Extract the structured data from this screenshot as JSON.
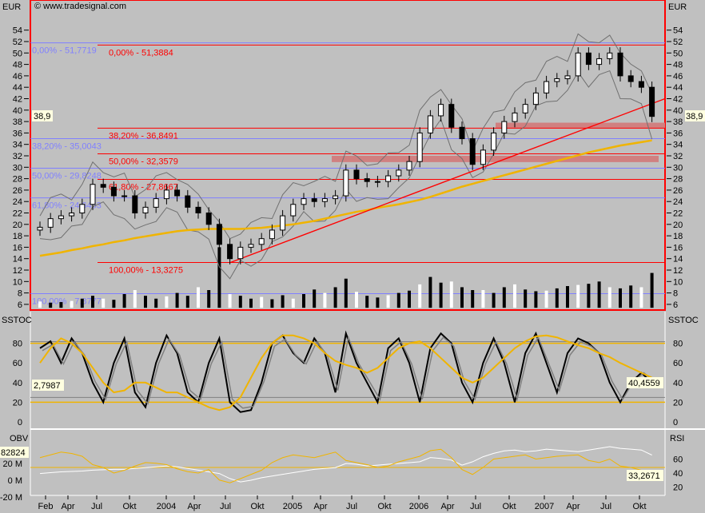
{
  "header": {
    "copyright": "© www.tradesignal.com",
    "left_unit": "EUR",
    "right_unit": "EUR"
  },
  "badges": {
    "price_left": "38,9",
    "price_right": "38,9",
    "sstoc_left": "2,7987",
    "sstoc_right": "40,4559",
    "obv_left": "82824",
    "rsi_right": "33,2671"
  },
  "colors": {
    "price": "#000000",
    "ma": "#f0b400",
    "bollinger": "#707070",
    "fib_blue": "#8080ff",
    "fib_red": "#ff0000",
    "zone": "#d08080",
    "background": "#c0c0c0"
  },
  "chart_data": [
    {
      "type": "candlestick",
      "name_label": "EUR",
      "ylim": [
        5,
        56
      ],
      "yticks": [
        6,
        8,
        10,
        12,
        14,
        16,
        18,
        20,
        22,
        24,
        26,
        28,
        30,
        32,
        34,
        36,
        38,
        40,
        42,
        44,
        46,
        48,
        50,
        52,
        54
      ],
      "x": [
        "2003-01",
        "2003-02",
        "2003-03",
        "2003-04",
        "2003-05",
        "2003-06",
        "2003-07",
        "2003-08",
        "2003-09",
        "2003-10",
        "2003-11",
        "2003-12",
        "2004-01",
        "2004-02",
        "2004-03",
        "2004-04",
        "2004-05",
        "2004-06",
        "2004-07",
        "2004-08",
        "2004-09",
        "2004-10",
        "2004-11",
        "2004-12",
        "2005-01",
        "2005-02",
        "2005-03",
        "2005-04",
        "2005-05",
        "2005-06",
        "2005-07",
        "2005-08",
        "2005-09",
        "2005-10",
        "2005-11",
        "2005-12",
        "2006-01",
        "2006-02",
        "2006-03",
        "2006-04",
        "2006-05",
        "2006-06",
        "2006-07",
        "2006-08",
        "2006-09",
        "2006-10",
        "2006-11",
        "2006-12",
        "2007-01",
        "2007-02",
        "2007-03",
        "2007-04",
        "2007-05",
        "2007-06",
        "2007-07",
        "2007-08",
        "2007-09",
        "2007-10",
        "2007-11"
      ],
      "close": [
        19.5,
        21,
        21.5,
        22,
        23.5,
        27,
        26.5,
        25,
        25,
        22,
        23,
        24.5,
        26,
        25,
        23,
        22,
        20,
        16.5,
        14,
        16,
        16.5,
        17.5,
        19,
        21.5,
        23.5,
        24.5,
        24,
        24.5,
        25,
        29.5,
        28,
        27.5,
        27.5,
        28.5,
        29.5,
        31,
        36,
        39,
        41,
        37,
        35,
        30.5,
        33,
        36,
        38,
        39.5,
        41,
        43,
        45,
        45.5,
        46,
        50,
        48,
        49,
        50,
        46,
        45,
        44,
        38.9
      ],
      "ma200": [
        14.5,
        14.8,
        15.1,
        15.5,
        15.8,
        16.2,
        16.5,
        16.9,
        17.2,
        17.6,
        17.9,
        18.2,
        18.5,
        18.8,
        19,
        19.1,
        19.2,
        19.2,
        19.2,
        19.2,
        19.3,
        19.4,
        19.6,
        19.8,
        20,
        20.3,
        20.6,
        21,
        21.4,
        21.8,
        22.2,
        22.5,
        22.9,
        23.2,
        23.5,
        23.9,
        24.3,
        24.8,
        25.4,
        26,
        26.6,
        27.1,
        27.6,
        28.1,
        28.6,
        29.1,
        29.6,
        30.1,
        30.6,
        31.1,
        31.6,
        32.1,
        32.6,
        33,
        33.4,
        33.8,
        34.1,
        34.4,
        34.7
      ],
      "volume": [
        6.5,
        6.3,
        6.4,
        6.6,
        7,
        7.5,
        7,
        6.8,
        7.8,
        8.5,
        7.5,
        7,
        7.4,
        8,
        7.5,
        9,
        8.5,
        16,
        7.8,
        7.5,
        7,
        7.3,
        6.9,
        7.6,
        7,
        7.8,
        8.6,
        8,
        9,
        10.5,
        8.2,
        7.5,
        7.2,
        7.6,
        8,
        8.4,
        9.5,
        10.8,
        9.8,
        10,
        9,
        8.5,
        8.5,
        8,
        9,
        9.5,
        8.6,
        8.3,
        8.4,
        8.8,
        9.2,
        9.4,
        9.6,
        10,
        9,
        8.8,
        9.3,
        9,
        11.5
      ],
      "fib_blue": [
        {
          "label": "0,00% - 51,7719",
          "value": 51.7719
        },
        {
          "label": "38,20% - 35,0043",
          "value": 35.0043
        },
        {
          "label": "50,00% - 29,8248",
          "value": 29.8248
        },
        {
          "label": "61,80% - 24,6453",
          "value": 24.6453
        },
        {
          "label": "100,00% - 7,8777",
          "value": 7.8777
        }
      ],
      "fib_red": [
        {
          "label": "0,00% - 51,3884",
          "value": 51.3884
        },
        {
          "label": "38,20% - 36,8491",
          "value": 36.8491
        },
        {
          "label": "50,00% - 32,3579",
          "value": 32.3579
        },
        {
          "label": "61,80% - 27,8667",
          "value": 27.8667
        },
        {
          "label": "100,00% - 13,3275",
          "value": 13.3275
        }
      ],
      "trendline": [
        {
          "x": "2004-07",
          "y": 13.3
        },
        {
          "x": "2007-11",
          "y": 42
        }
      ],
      "zones": [
        {
          "from": "2006-08",
          "to": "2007-11",
          "low": 36.8,
          "high": 37.8
        },
        {
          "from": "2005-05",
          "to": "2007-11",
          "low": 30.9,
          "high": 32
        }
      ]
    },
    {
      "type": "line",
      "name_label": "SSTOC",
      "ylim": [
        -5,
        95
      ],
      "yticks": [
        0,
        20,
        40,
        60,
        80
      ],
      "levels": [
        20,
        80
      ],
      "k": [
        75,
        82,
        60,
        85,
        70,
        40,
        20,
        60,
        85,
        30,
        15,
        60,
        88,
        70,
        30,
        20,
        60,
        85,
        20,
        10,
        12,
        40,
        80,
        88,
        70,
        60,
        85,
        70,
        30,
        90,
        60,
        40,
        20,
        75,
        85,
        60,
        20,
        75,
        90,
        80,
        40,
        20,
        60,
        85,
        60,
        20,
        70,
        90,
        60,
        30,
        70,
        85,
        80,
        70,
        40,
        20,
        40,
        50,
        40
      ],
      "signal": [
        60,
        75,
        85,
        80,
        70,
        55,
        40,
        30,
        32,
        40,
        40,
        35,
        30,
        30,
        25,
        20,
        15,
        12,
        15,
        25,
        45,
        65,
        80,
        88,
        88,
        85,
        80,
        70,
        62,
        58,
        55,
        50,
        55,
        65,
        75,
        80,
        82,
        75,
        65,
        55,
        45,
        40,
        45,
        55,
        65,
        75,
        82,
        87,
        88,
        86,
        82,
        78,
        75,
        70,
        66,
        60,
        55,
        50,
        45
      ]
    },
    {
      "type": "line",
      "name_label": "OBV / RSI",
      "obv_ticks": [
        "20 M",
        "0 M",
        "-20 M"
      ],
      "rsi_ticks": [
        20,
        40,
        60
      ],
      "obv": [
        8,
        9,
        10,
        10.5,
        11,
        12,
        12.5,
        13,
        13,
        14,
        15,
        16,
        17,
        16,
        14,
        12,
        10,
        8,
        2,
        -2,
        0,
        3,
        5,
        7,
        9,
        11,
        13,
        14,
        15,
        20,
        19,
        17,
        18,
        19,
        20,
        21,
        22,
        27,
        26,
        24,
        18,
        22,
        28,
        32,
        35,
        36,
        34,
        35,
        37,
        36,
        35,
        34,
        36,
        38,
        40,
        38,
        37,
        36,
        30
      ],
      "rsi": [
        62,
        66,
        70,
        68,
        64,
        52,
        48,
        40,
        44,
        50,
        55,
        54,
        52,
        46,
        42,
        40,
        45,
        30,
        26,
        32,
        38,
        44,
        55,
        62,
        66,
        64,
        62,
        66,
        70,
        58,
        55,
        52,
        48,
        50,
        56,
        60,
        64,
        72,
        74,
        62,
        45,
        38,
        48,
        60,
        62,
        64,
        66,
        60,
        62,
        64,
        65,
        66,
        58,
        55,
        60,
        50,
        48,
        44,
        33
      ]
    },
    {
      "type": "axis",
      "x_tick_labels": [
        "Feb",
        "Apr",
        "Jul",
        "Okt",
        "2004",
        "Apr",
        "Jul",
        "Okt",
        "2005",
        "Apr",
        "Jul",
        "Okt",
        "2006",
        "Apr",
        "Jul",
        "Okt",
        "2007",
        "Apr",
        "Jul",
        "Okt"
      ]
    }
  ]
}
